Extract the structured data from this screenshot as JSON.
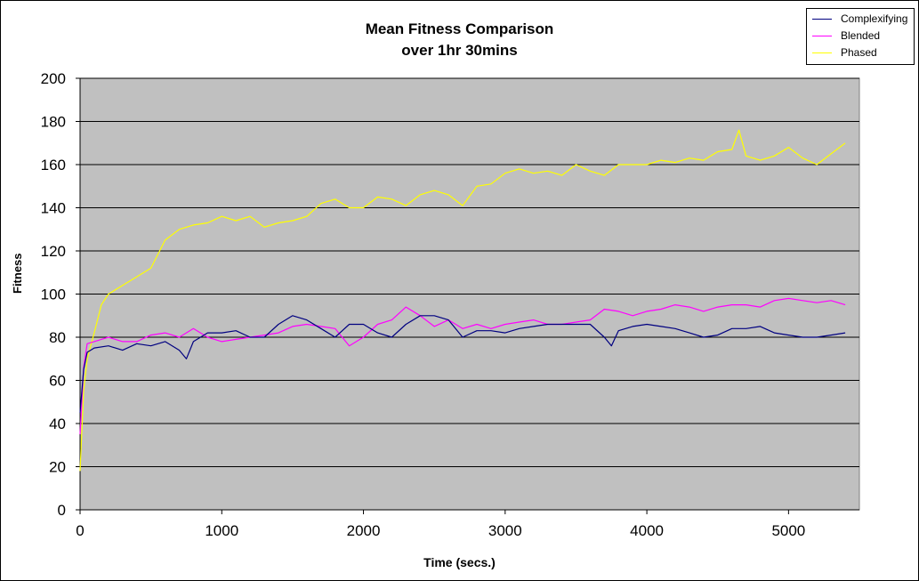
{
  "chart_data": {
    "type": "line",
    "title": "Mean Fitness Comparison",
    "subtitle": "over 1hr 30mins",
    "xlabel": "Time (secs.)",
    "ylabel": "Fitness",
    "xlim": [
      0,
      5500
    ],
    "ylim": [
      0,
      200
    ],
    "xticks": [
      "0",
      "1000",
      "2000",
      "3000",
      "4000",
      "5000"
    ],
    "yticks": [
      "0",
      "20",
      "40",
      "60",
      "80",
      "100",
      "120",
      "140",
      "160",
      "180",
      "200"
    ],
    "grid": "horizontal",
    "plot_background": "#c0c0c0",
    "legend_position": "top-right",
    "series": [
      {
        "name": "Complexifying",
        "color": "#000080",
        "x": [
          0,
          25,
          50,
          100,
          200,
          300,
          400,
          500,
          600,
          700,
          750,
          800,
          900,
          1000,
          1100,
          1200,
          1300,
          1400,
          1500,
          1600,
          1700,
          1800,
          1900,
          2000,
          2100,
          2200,
          2300,
          2400,
          2500,
          2600,
          2700,
          2800,
          2900,
          3000,
          3100,
          3200,
          3300,
          3400,
          3500,
          3600,
          3700,
          3750,
          3800,
          3900,
          4000,
          4100,
          4200,
          4300,
          4400,
          4500,
          4600,
          4700,
          4800,
          4900,
          5000,
          5100,
          5200,
          5300,
          5400
        ],
        "y": [
          45,
          65,
          73,
          75,
          76,
          74,
          77,
          76,
          78,
          74,
          70,
          78,
          82,
          82,
          83,
          80,
          80,
          86,
          90,
          88,
          84,
          80,
          86,
          86,
          82,
          80,
          86,
          90,
          90,
          88,
          80,
          83,
          83,
          82,
          84,
          85,
          86,
          86,
          86,
          86,
          80,
          76,
          83,
          85,
          86,
          85,
          84,
          82,
          80,
          81,
          84,
          84,
          85,
          82,
          81,
          80,
          80,
          81,
          82
        ]
      },
      {
        "name": "Blended",
        "color": "#ff00ff",
        "x": [
          0,
          25,
          50,
          100,
          200,
          300,
          400,
          500,
          600,
          700,
          800,
          900,
          1000,
          1100,
          1200,
          1300,
          1400,
          1500,
          1600,
          1700,
          1800,
          1900,
          2000,
          2100,
          2200,
          2300,
          2400,
          2500,
          2600,
          2700,
          2800,
          2900,
          3000,
          3100,
          3200,
          3300,
          3400,
          3500,
          3600,
          3700,
          3800,
          3900,
          4000,
          4100,
          4200,
          4300,
          4400,
          4500,
          4600,
          4700,
          4800,
          4900,
          5000,
          5100,
          5200,
          5300,
          5400
        ],
        "y": [
          35,
          66,
          77,
          78,
          80,
          78,
          78,
          81,
          82,
          80,
          84,
          80,
          78,
          79,
          80,
          81,
          82,
          85,
          86,
          85,
          84,
          76,
          80,
          86,
          88,
          94,
          90,
          85,
          88,
          84,
          86,
          84,
          86,
          87,
          88,
          86,
          86,
          87,
          88,
          93,
          92,
          90,
          92,
          93,
          95,
          94,
          92,
          94,
          95,
          95,
          94,
          97,
          98,
          97,
          96,
          97,
          95
        ]
      },
      {
        "name": "Phased",
        "color": "#ffff00",
        "x": [
          0,
          25,
          50,
          100,
          150,
          200,
          300,
          400,
          500,
          600,
          700,
          800,
          900,
          1000,
          1100,
          1200,
          1300,
          1400,
          1500,
          1600,
          1700,
          1800,
          1900,
          2000,
          2100,
          2200,
          2300,
          2400,
          2500,
          2600,
          2700,
          2800,
          2900,
          3000,
          3100,
          3200,
          3300,
          3400,
          3500,
          3600,
          3700,
          3800,
          3900,
          4000,
          4100,
          4200,
          4300,
          4400,
          4500,
          4600,
          4650,
          4700,
          4800,
          4900,
          5000,
          5100,
          5200,
          5300,
          5400
        ],
        "y": [
          18,
          55,
          70,
          82,
          95,
          100,
          104,
          108,
          112,
          125,
          130,
          132,
          133,
          136,
          134,
          136,
          131,
          133,
          134,
          136,
          142,
          144,
          140,
          140,
          145,
          144,
          141,
          146,
          148,
          146,
          141,
          150,
          151,
          156,
          158,
          156,
          157,
          155,
          160,
          157,
          155,
          160,
          160,
          160,
          162,
          161,
          163,
          162,
          166,
          167,
          176,
          164,
          162,
          164,
          168,
          163,
          160,
          165,
          170
        ]
      }
    ]
  }
}
